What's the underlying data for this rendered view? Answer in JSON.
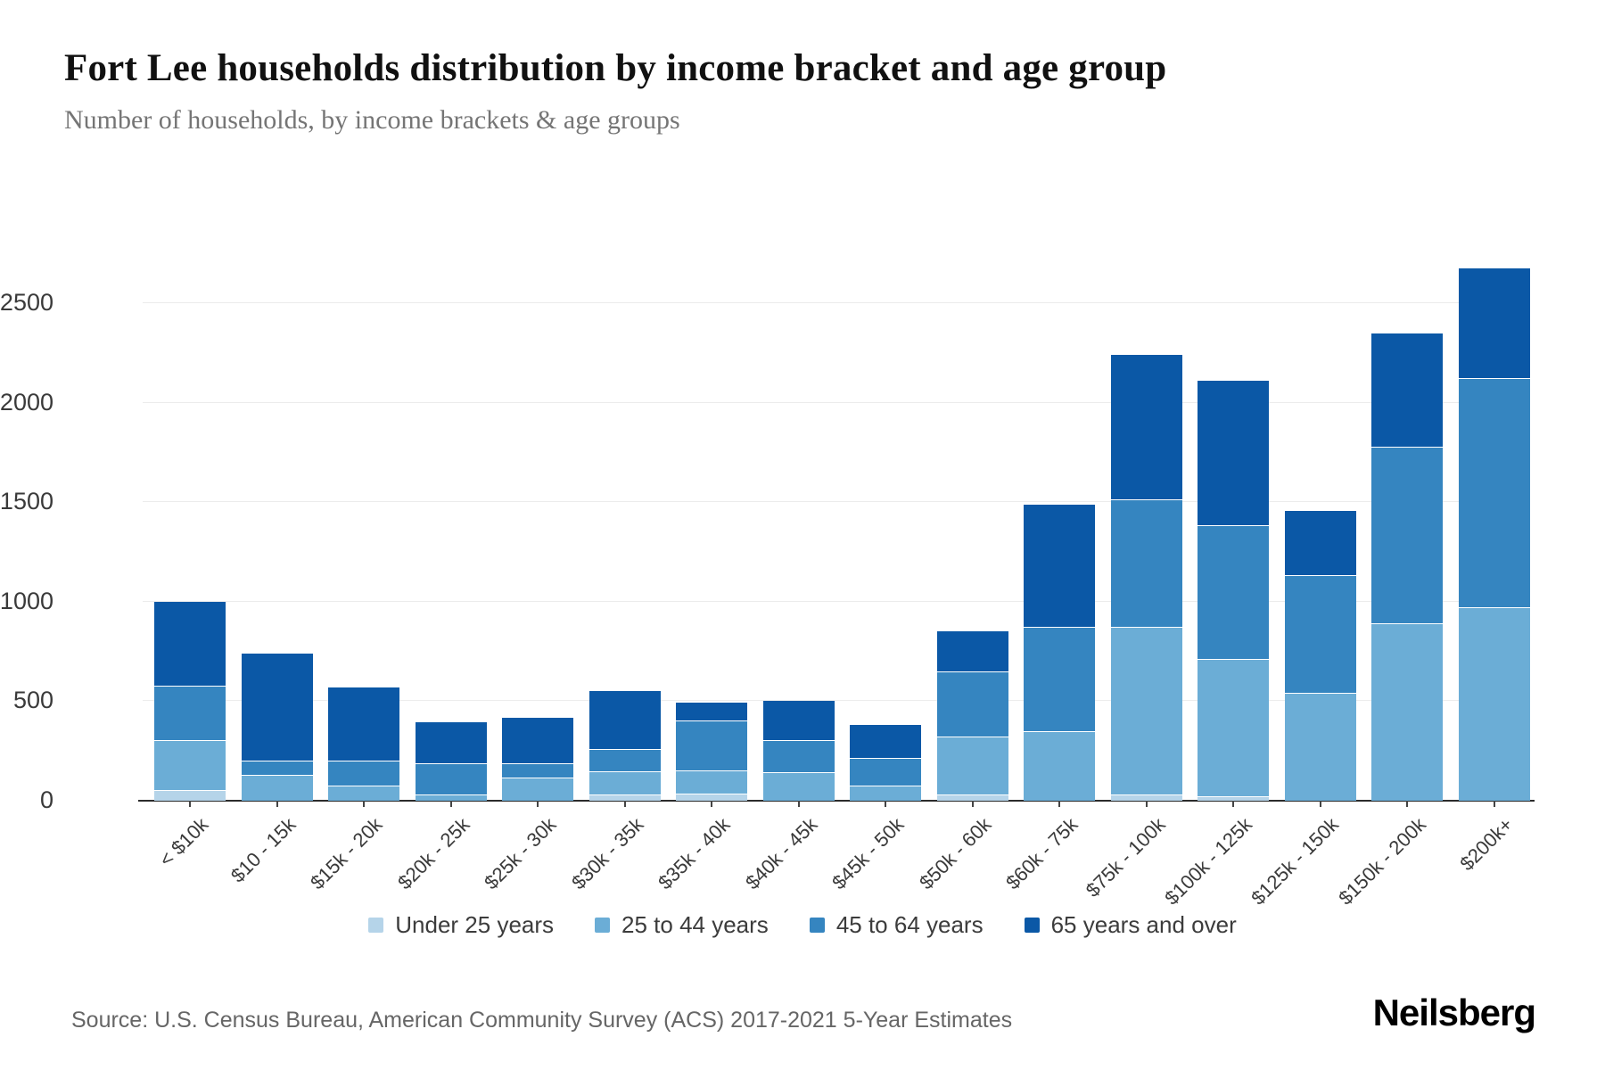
{
  "header": {
    "title": "Fort Lee households distribution by income bracket and age group",
    "subtitle": "Number of households, by income brackets & age groups"
  },
  "chart_data": {
    "type": "bar",
    "stacked": true,
    "title": "Fort Lee households distribution by income bracket and age group",
    "xlabel": "",
    "ylabel": "Number of households",
    "categories": [
      "< $10k",
      "$10 - 15k",
      "$15k - 20k",
      "$20k - 25k",
      "$25k - 30k",
      "$30k - 35k",
      "$35k - 40k",
      "$40k - 45k",
      "$45k - 50k",
      "$50k - 60k",
      "$60k - 75k",
      "$75k - 100k",
      "$100k - 125k",
      "$125k - 150k",
      "$150k - 200k",
      "$200k+"
    ],
    "series": [
      {
        "name": "Under 25 years",
        "color": "#b5d4e9",
        "values": [
          50,
          0,
          0,
          0,
          0,
          25,
          30,
          0,
          0,
          25,
          0,
          25,
          20,
          0,
          0,
          0
        ]
      },
      {
        "name": "25 to 44 years",
        "color": "#6badd6",
        "values": [
          245,
          125,
          70,
          25,
          110,
          115,
          115,
          140,
          70,
          290,
          345,
          840,
          685,
          540,
          890,
          970
        ]
      },
      {
        "name": "45 to 64 years",
        "color": "#3585c0",
        "values": [
          270,
          70,
          125,
          155,
          70,
          105,
          245,
          155,
          135,
          320,
          520,
          635,
          665,
          585,
          880,
          1145
        ]
      },
      {
        "name": "65 years and over",
        "color": "#0b58a6",
        "values": [
          420,
          535,
          365,
          205,
          230,
          295,
          90,
          200,
          165,
          205,
          615,
          730,
          730,
          325,
          570,
          555
        ]
      }
    ],
    "totals": [
      985,
      730,
      560,
      385,
      410,
      540,
      480,
      495,
      370,
      840,
      1480,
      2230,
      2100,
      1450,
      2340,
      2670
    ],
    "ylim": [
      0,
      2690
    ],
    "y_ticks": [
      0,
      500,
      1000,
      1500,
      2000,
      2500
    ],
    "grid": "horizontal",
    "legend_position": "bottom"
  },
  "footer": {
    "source": "Source: U.S. Census Bureau, American Community Survey (ACS) 2017-2021 5-Year Estimates",
    "brand": "Neilsberg"
  }
}
